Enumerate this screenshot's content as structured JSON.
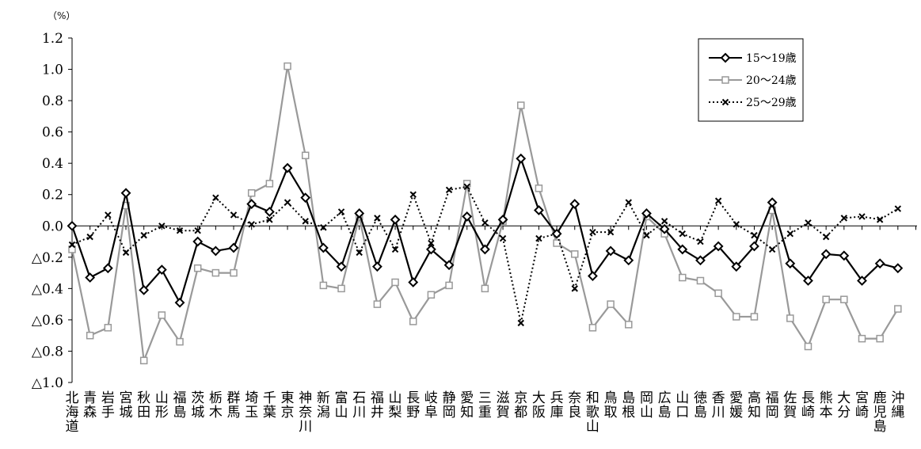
{
  "chart_data": {
    "type": "line",
    "unit_label": "（%）",
    "y_tick_labels": [
      "1.2",
      "1.0",
      "0.8",
      "0.6",
      "0.4",
      "0.2",
      "0.0",
      "△0.2",
      "△0.4",
      "△0.6",
      "△0.8",
      "△1.0"
    ],
    "y_ticks": [
      1.2,
      1.0,
      0.8,
      0.6,
      0.4,
      0.2,
      0.0,
      -0.2,
      -0.4,
      -0.6,
      -0.8,
      -1.0
    ],
    "ylim": [
      -1.0,
      1.2
    ],
    "grid": false,
    "legend_position": "top-right",
    "categories": [
      "北海道",
      "青森",
      "岩手",
      "宮城",
      "秋田",
      "山形",
      "福島",
      "茨城",
      "栃木",
      "群馬",
      "埼玉",
      "千葉",
      "東京",
      "神奈川",
      "新潟",
      "富山",
      "石川",
      "福井",
      "山梨",
      "長野",
      "岐阜",
      "静岡",
      "愛知",
      "三重",
      "滋賀",
      "京都",
      "大阪",
      "兵庫",
      "奈良",
      "和歌山",
      "鳥取",
      "島根",
      "岡山",
      "広島",
      "山口",
      "徳島",
      "香川",
      "愛媛",
      "高知",
      "福岡",
      "佐賀",
      "長崎",
      "熊本",
      "大分",
      "宮崎",
      "鹿児島",
      "沖縄"
    ],
    "series": [
      {
        "name": "15～19歳",
        "color": "#000000",
        "marker": "diamond",
        "line_style": "solid",
        "values": [
          0.0,
          -0.33,
          -0.27,
          0.21,
          -0.41,
          -0.28,
          -0.49,
          -0.1,
          -0.16,
          -0.14,
          0.14,
          0.09,
          0.37,
          0.18,
          -0.14,
          -0.26,
          0.08,
          -0.26,
          0.04,
          -0.36,
          -0.15,
          -0.25,
          0.06,
          -0.15,
          0.04,
          0.43,
          0.1,
          -0.05,
          0.14,
          -0.32,
          -0.16,
          -0.22,
          0.08,
          -0.02,
          -0.15,
          -0.22,
          -0.13,
          -0.26,
          -0.13,
          0.15,
          -0.24,
          -0.35,
          -0.18,
          -0.19,
          -0.35,
          -0.24,
          -0.27
        ]
      },
      {
        "name": "20～24歳",
        "color": "#999999",
        "marker": "square",
        "line_style": "solid",
        "values": [
          -0.15,
          -0.7,
          -0.65,
          0.13,
          -0.86,
          -0.57,
          -0.74,
          -0.27,
          -0.3,
          -0.3,
          0.21,
          0.27,
          1.02,
          0.45,
          -0.38,
          -0.4,
          0.06,
          -0.5,
          -0.36,
          -0.61,
          -0.44,
          -0.38,
          0.27,
          -0.4,
          0.03,
          0.77,
          0.24,
          -0.11,
          -0.18,
          -0.65,
          -0.5,
          -0.63,
          0.06,
          -0.05,
          -0.33,
          -0.35,
          -0.43,
          -0.58,
          -0.58,
          0.1,
          -0.59,
          -0.77,
          -0.47,
          -0.47,
          -0.72,
          -0.72,
          -0.53
        ]
      },
      {
        "name": "25～29歳",
        "color": "#000000",
        "marker": "x",
        "line_style": "dotted",
        "values": [
          -0.12,
          -0.07,
          0.07,
          -0.17,
          -0.06,
          0.0,
          -0.03,
          -0.03,
          0.18,
          0.07,
          0.01,
          0.04,
          0.15,
          0.03,
          -0.01,
          0.09,
          -0.17,
          0.05,
          -0.15,
          0.2,
          -0.11,
          0.23,
          0.25,
          0.02,
          -0.08,
          -0.62,
          -0.08,
          -0.05,
          -0.4,
          -0.04,
          -0.04,
          0.15,
          -0.06,
          0.03,
          -0.05,
          -0.1,
          0.16,
          0.01,
          -0.06,
          -0.15,
          -0.05,
          0.02,
          -0.07,
          0.05,
          0.06,
          0.04,
          0.11
        ]
      }
    ]
  }
}
